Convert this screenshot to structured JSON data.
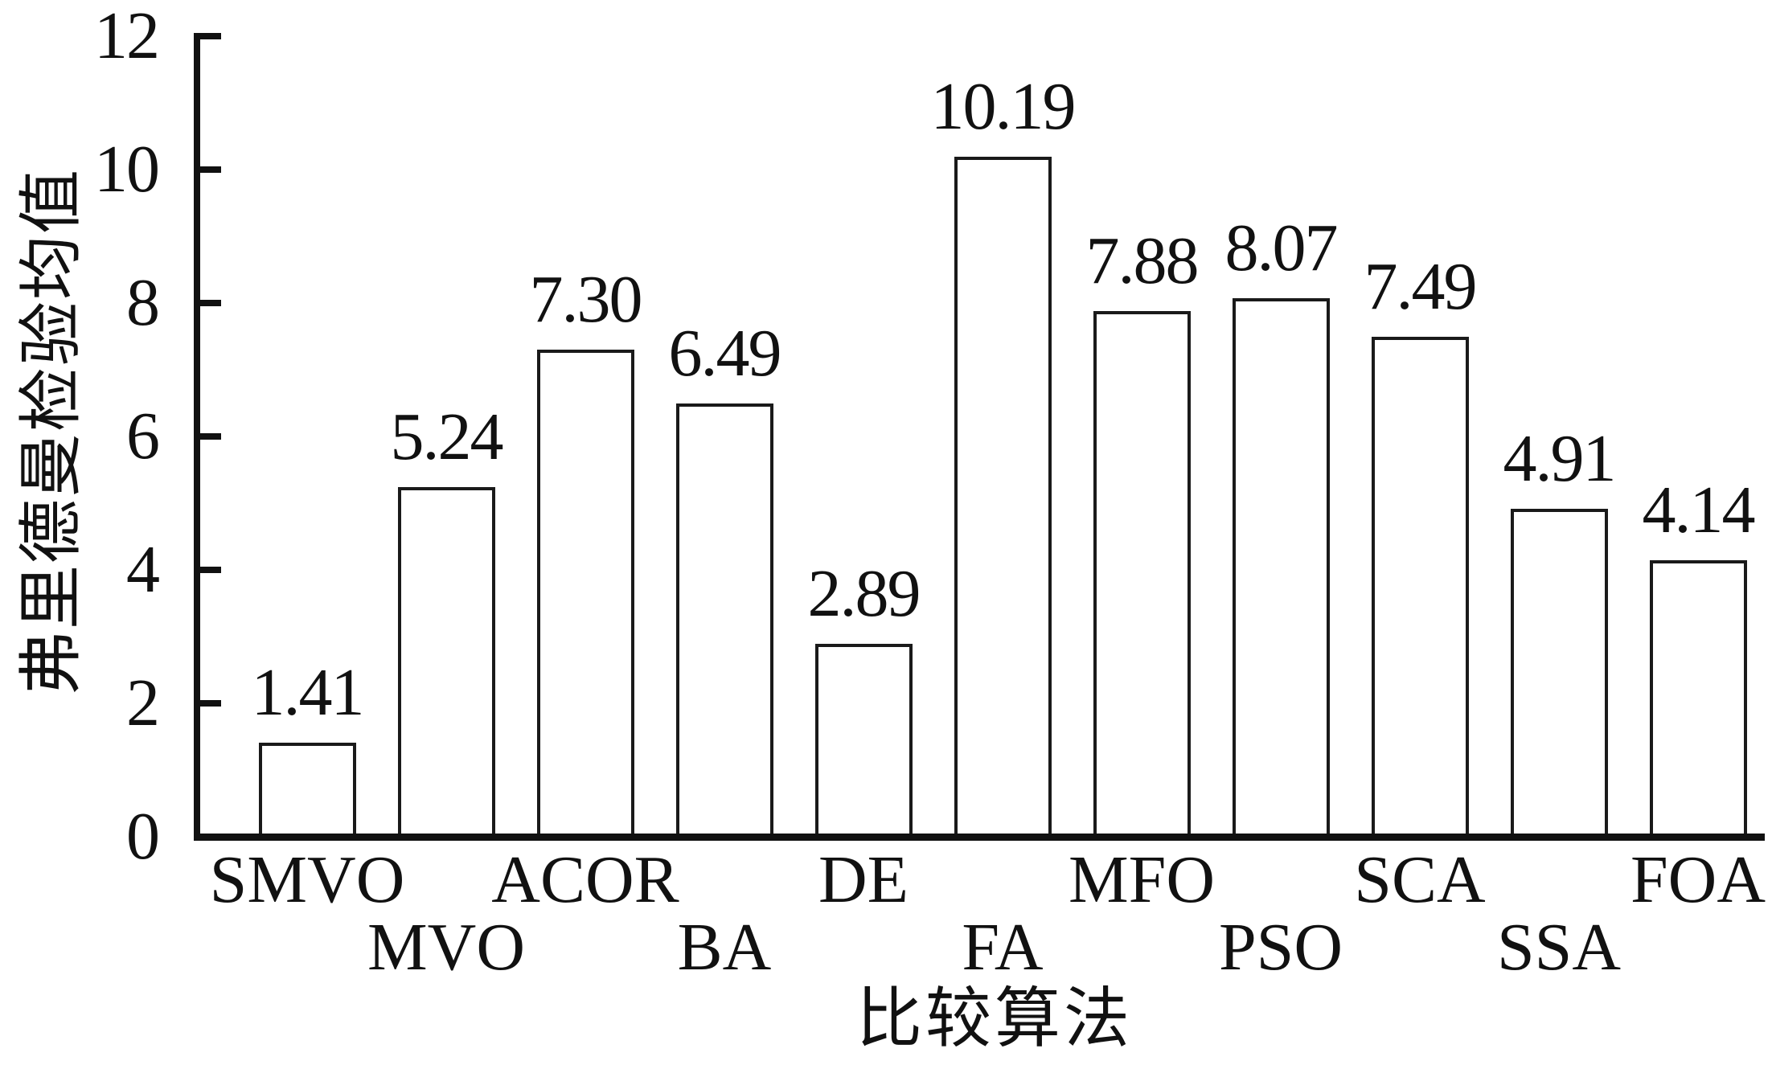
{
  "chart_data": {
    "type": "bar",
    "title": "",
    "xlabel": "比较算法",
    "ylabel": "弗里德曼检验均值",
    "categories": [
      "SMVO",
      "MVO",
      "ACOR",
      "BA",
      "DE",
      "FA",
      "MFO",
      "PSO",
      "SCA",
      "SSA",
      "FOA"
    ],
    "values": [
      1.41,
      5.24,
      7.3,
      6.49,
      2.89,
      10.19,
      7.88,
      8.07,
      7.49,
      4.91,
      4.14
    ],
    "value_labels": [
      "1.41",
      "5.24",
      "7.30",
      "6.49",
      "2.89",
      "10.19",
      "7.88",
      "8.07",
      "7.49",
      "4.91",
      "4.14"
    ],
    "ylim": [
      0,
      12
    ],
    "yticks": [
      "0",
      "2",
      "4",
      "6",
      "8",
      "10",
      "12"
    ],
    "grid": false,
    "legend": null,
    "bar_fill": "#ffffff",
    "bar_border": "#1a1a1a",
    "axis_color": "#111111",
    "text_color": "#111111",
    "background": "#ffffff",
    "x_label_layout": "staggered-two-rows"
  }
}
